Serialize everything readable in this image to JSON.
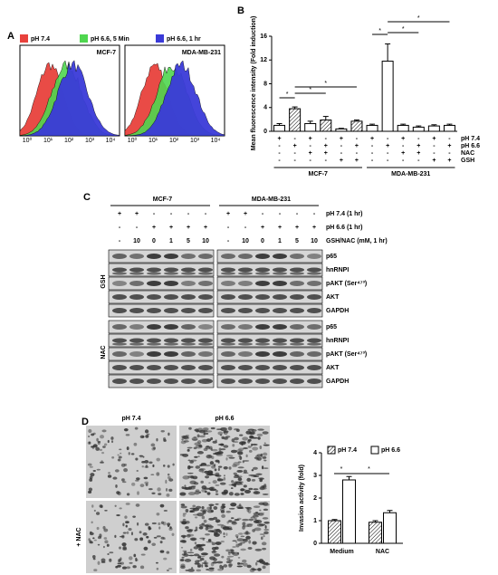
{
  "panel_labels": [
    "A",
    "B",
    "C",
    "D"
  ],
  "panel_a": {
    "legend": [
      "pH 7.4",
      "pH 6.6, 5 Min",
      "pH 6.6, 1 hr"
    ],
    "legend_colors": [
      "#e8413c",
      "#4fd64f",
      "#3a3ad8"
    ],
    "cells": [
      "MCF-7",
      "MDA-MB-231"
    ],
    "ticks": [
      "10⁰",
      "10¹",
      "10²",
      "10³",
      "10⁴"
    ]
  },
  "chart_data": [
    {
      "type": "bar",
      "ylabel": "Mean fluorescence intensity (Fold induction)",
      "ylim": [
        0,
        16
      ],
      "yticks": [
        0,
        4,
        8,
        12,
        16
      ],
      "series": [
        {
          "name": "MCF-7",
          "values": [
            1.0,
            3.8,
            1.3,
            1.9,
            0.4,
            1.7
          ],
          "errors": [
            0.3,
            0.3,
            0.4,
            0.6,
            0.1,
            0.2
          ],
          "hatch": [
            false,
            true,
            false,
            true,
            false,
            true
          ]
        },
        {
          "name": "MDA-MB-231",
          "values": [
            1.0,
            11.8,
            1.0,
            0.7,
            0.9,
            1.0
          ],
          "errors": [
            0.2,
            2.9,
            0.2,
            0.2,
            0.2,
            0.2
          ],
          "hatch": [
            false,
            false,
            false,
            false,
            false,
            false
          ]
        }
      ],
      "conditions": {
        "labels": [
          "pH 7.4",
          "pH 6.6",
          "NAC",
          "GSH"
        ],
        "signs": [
          [
            "+",
            "-",
            "+",
            "-",
            "+",
            "-",
            "+",
            "-",
            "+",
            "-",
            "+",
            "-"
          ],
          [
            "-",
            "+",
            "-",
            "+",
            "-",
            "+",
            "-",
            "+",
            "-",
            "+",
            "-",
            "+"
          ],
          [
            "-",
            "-",
            "+",
            "+",
            "-",
            "-",
            "-",
            "-",
            "+",
            "+",
            "-",
            "-"
          ],
          [
            "-",
            "-",
            "-",
            "-",
            "+",
            "+",
            "-",
            "-",
            "-",
            "-",
            "+",
            "+"
          ]
        ]
      },
      "annotations": [
        "*",
        "*",
        "*",
        "*",
        "*",
        "*"
      ]
    },
    {
      "type": "bar",
      "ylabel": "Invasion activity (fold)",
      "ylim": [
        0,
        4
      ],
      "yticks": [
        0,
        1,
        2,
        3,
        4
      ],
      "categories": [
        "Medium",
        "NAC"
      ],
      "series": [
        {
          "name": "pH 7.4",
          "hatch": true,
          "values": [
            1.0,
            0.93
          ],
          "errors": [
            0.05,
            0.07
          ]
        },
        {
          "name": "pH 6.6",
          "hatch": false,
          "values": [
            2.8,
            1.35
          ],
          "errors": [
            0.15,
            0.1
          ]
        }
      ],
      "annotations": [
        "*",
        "*"
      ]
    }
  ],
  "panel_c": {
    "cells": [
      "MCF-7",
      "MDA-MB-231"
    ],
    "conditions": [
      {
        "label": "pH 7.4 (1 hr)",
        "lanes": [
          "+",
          "+",
          "-",
          "-",
          "-",
          "-"
        ]
      },
      {
        "label": "pH 6.6 (1 hr)",
        "lanes": [
          "-",
          "-",
          "+",
          "+",
          "+",
          "+"
        ]
      },
      {
        "label": "GSH/NAC (mM, 1 hr)",
        "lanes": [
          "-",
          "10",
          "0",
          "1",
          "5",
          "10"
        ]
      }
    ],
    "treatments": [
      "GSH",
      "NAC"
    ],
    "bands": [
      "p65",
      "hnRNPI",
      "pAKT (Ser⁴⁷³)",
      "AKT",
      "GAPDH"
    ]
  },
  "panel_d": {
    "columns": [
      "pH 7.4",
      "pH 6.6"
    ],
    "row_label": "+ NAC"
  }
}
